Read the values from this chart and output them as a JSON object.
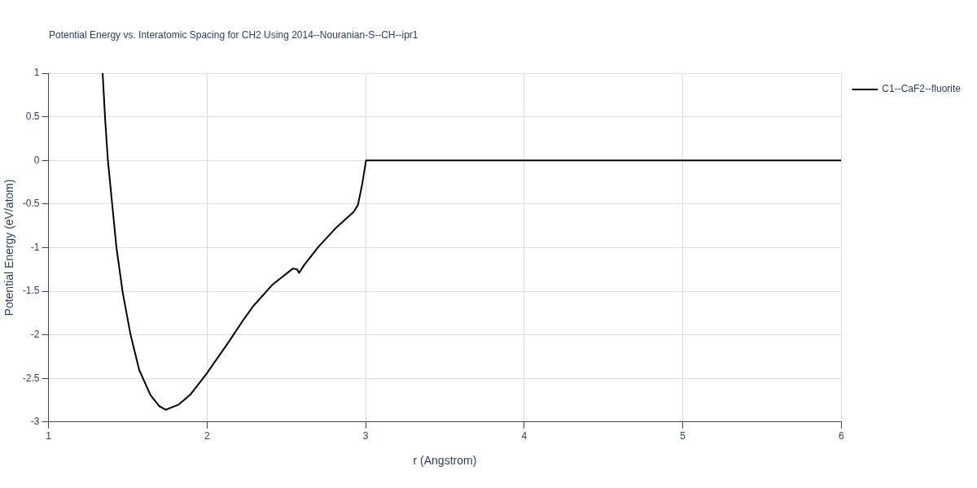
{
  "chart_data": {
    "type": "line",
    "title": "Potential Energy vs. Interatomic Spacing for CH2 Using 2014--Nouranian-S--CH--ipr1",
    "xlabel": "r (Angstrom)",
    "ylabel": "Potential Energy (eV/atom)",
    "xlim": [
      1,
      6
    ],
    "xticks": [
      1,
      2,
      3,
      4,
      5,
      6
    ],
    "ylim": [
      -3,
      1
    ],
    "yticks": [
      -3,
      -2.5,
      -2,
      -1.5,
      -1,
      -0.5,
      0,
      0.5,
      1
    ],
    "grid": true,
    "legend": "top right",
    "marker": "none",
    "line_style": "solid",
    "series": [
      {
        "name": "C1--CaF2--fluorite",
        "color": "#000000",
        "x": [
          1.342,
          1.357,
          1.375,
          1.402,
          1.429,
          1.468,
          1.518,
          1.572,
          1.643,
          1.7,
          1.741,
          1.822,
          1.893,
          2.0,
          2.13,
          2.233,
          2.292,
          2.416,
          2.542,
          2.568,
          2.581,
          2.613,
          2.703,
          2.81,
          2.925,
          2.952,
          2.979,
          3.003,
          4,
          5,
          6
        ],
        "values": [
          1,
          0.49,
          0,
          -0.5,
          -1.0,
          -1.51,
          -2.0,
          -2.4,
          -2.69,
          -2.82,
          -2.86,
          -2.8,
          -2.69,
          -2.44,
          -2.1,
          -1.82,
          -1.67,
          -1.42,
          -1.24,
          -1.25,
          -1.29,
          -1.2,
          -0.99,
          -0.78,
          -0.59,
          -0.51,
          -0.27,
          0,
          0,
          0,
          0
        ]
      }
    ]
  }
}
